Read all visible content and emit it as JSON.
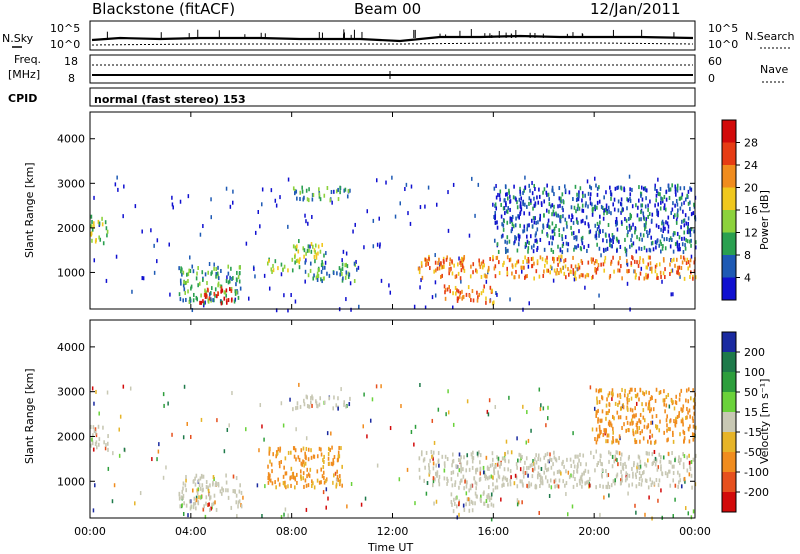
{
  "header": {
    "station": "Blackstone (fitACF)",
    "beam": "Beam 00",
    "date": "12/Jan/2011"
  },
  "noise_panel": {
    "left_label": "N.Sky",
    "right_label": "N.Search",
    "left_ticks": [
      "10^5",
      "10^0"
    ],
    "right_ticks": [
      "10^5",
      "10^0"
    ]
  },
  "freq_panel": {
    "left_label_1": "Freq.",
    "left_label_2": "[MHz]",
    "right_label": "Nave",
    "left_ticks": [
      "18",
      "8"
    ],
    "right_ticks": [
      "60",
      "0"
    ]
  },
  "cpid": {
    "label": "CPID",
    "mode": "normal (fast stereo) 153"
  },
  "chart_data": [
    {
      "type": "heatmap",
      "panel": "power",
      "ylabel": "Slant Range [km]",
      "xlabel": "Time UT",
      "x_ticks": [
        "00:00",
        "04:00",
        "08:00",
        "12:00",
        "16:00",
        "20:00",
        "00:00"
      ],
      "xlim_hours": [
        0,
        24
      ],
      "y_ticks": [
        1000,
        2000,
        3000,
        4000
      ],
      "ylim": [
        180,
        4600
      ],
      "colorbar": {
        "label": "Power [dB]",
        "ticks": [
          4,
          8,
          12,
          16,
          20,
          24,
          28
        ],
        "range": [
          0,
          32
        ],
        "colors": [
          "#1010d0",
          "#1e5ab4",
          "#2aa050",
          "#8cd23c",
          "#f0c81e",
          "#f08c1e",
          "#e63c14",
          "#d20a0a"
        ]
      },
      "features": [
        {
          "t": [
            0.0,
            0.7
          ],
          "r": [
            1700,
            2350
          ],
          "level": 3
        },
        {
          "t": [
            3.5,
            6.0
          ],
          "r": [
            350,
            1200
          ],
          "level": 2
        },
        {
          "t": [
            4.3,
            5.7
          ],
          "r": [
            350,
            700
          ],
          "level": 7
        },
        {
          "t": [
            7.0,
            8.3
          ],
          "r": [
            1050,
            1350
          ],
          "level": 3
        },
        {
          "t": [
            8.0,
            9.3
          ],
          "r": [
            1350,
            1750
          ],
          "level": 3
        },
        {
          "t": [
            8.5,
            10.5
          ],
          "r": [
            850,
            1300
          ],
          "level": 2
        },
        {
          "t": [
            8.0,
            10.3
          ],
          "r": [
            2650,
            2950
          ],
          "level": 2
        },
        {
          "t": [
            13.0,
            24.0
          ],
          "r": [
            900,
            1400
          ],
          "level": 5
        },
        {
          "t": [
            14.0,
            16.0
          ],
          "r": [
            350,
            750
          ],
          "level": 5
        },
        {
          "t": [
            16.0,
            24.0
          ],
          "r": [
            1500,
            3000
          ],
          "level": 1
        }
      ]
    },
    {
      "type": "heatmap",
      "panel": "velocity",
      "ylabel": "Slant Range [km]",
      "xlabel": "Time UT",
      "x_ticks": [
        "00:00",
        "04:00",
        "08:00",
        "12:00",
        "16:00",
        "20:00",
        "00:00"
      ],
      "xlim_hours": [
        0,
        24
      ],
      "y_ticks": [
        1000,
        2000,
        3000,
        4000
      ],
      "ylim": [
        180,
        4600
      ],
      "colorbar": {
        "label": "Velocity [m s⁻¹]",
        "ticks": [
          200,
          100,
          50,
          15,
          -15,
          -50,
          -100,
          -200
        ],
        "colors": [
          "#1a2aa0",
          "#1e7a4a",
          "#2d9e3c",
          "#6ad23a",
          "#c8c8b4",
          "#e6b428",
          "#f08c1e",
          "#e6501e",
          "#d20a0a"
        ]
      },
      "features": [
        {
          "t": [
            0.0,
            0.7
          ],
          "r": [
            1700,
            2300
          ],
          "level": "ground"
        },
        {
          "t": [
            3.5,
            6.0
          ],
          "r": [
            400,
            1200
          ],
          "level": "ground"
        },
        {
          "t": [
            7.0,
            10.0
          ],
          "r": [
            900,
            1800
          ],
          "level": "-50"
        },
        {
          "t": [
            8.0,
            10.3
          ],
          "r": [
            2650,
            2950
          ],
          "level": "ground"
        },
        {
          "t": [
            13.0,
            24.0
          ],
          "r": [
            900,
            1700
          ],
          "level": "ground"
        },
        {
          "t": [
            14.3,
            16.0
          ],
          "r": [
            350,
            900
          ],
          "level": "ground"
        },
        {
          "t": [
            20.0,
            24.0
          ],
          "r": [
            1900,
            3100
          ],
          "level": "-50"
        }
      ]
    }
  ]
}
